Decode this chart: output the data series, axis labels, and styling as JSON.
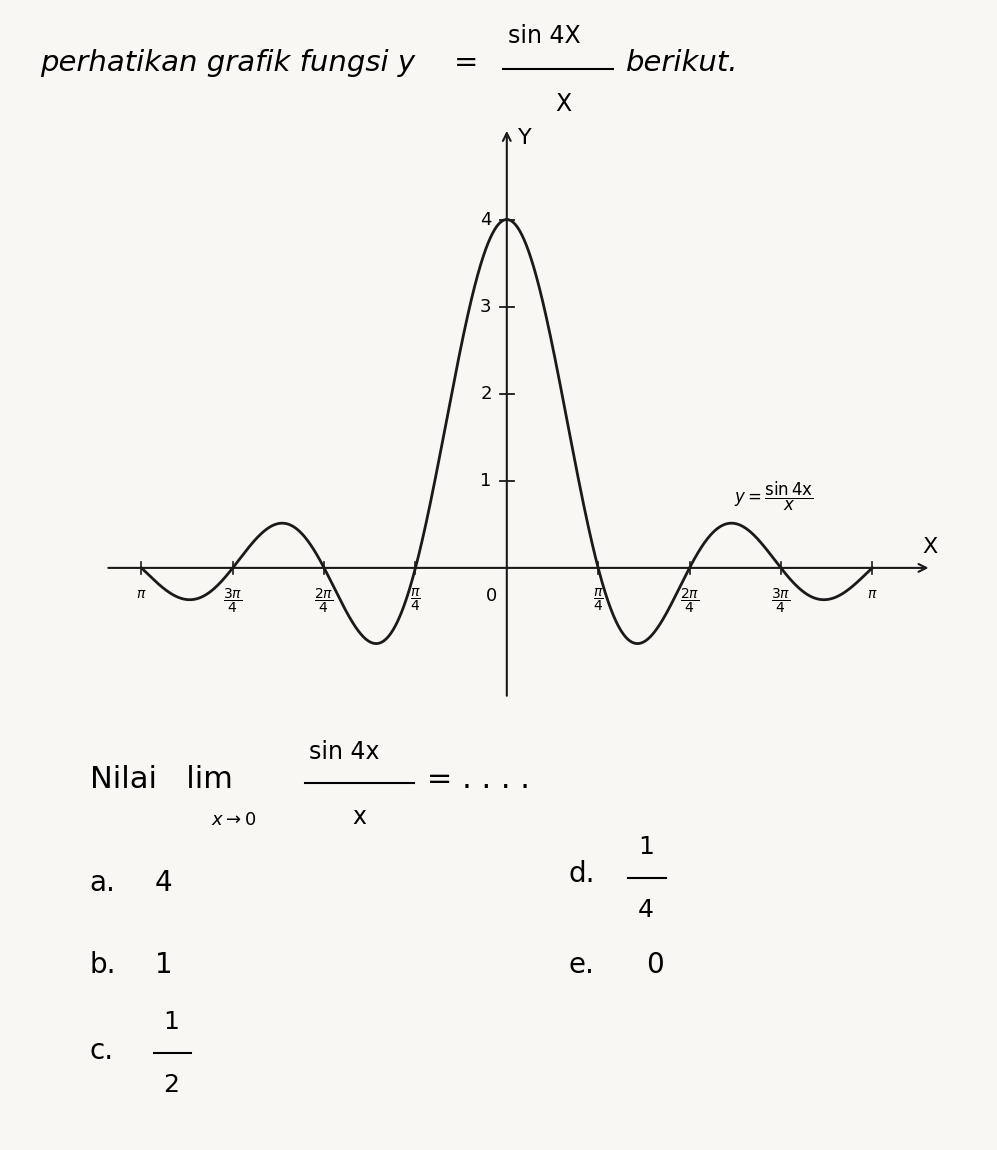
{
  "background_color": "#f8f7f4",
  "curve_color": "#1a1a1a",
  "axis_color": "#1a1a1a",
  "pi": 3.14159265358979,
  "xlim": [
    -3.5,
    3.7
  ],
  "ylim": [
    -1.6,
    5.2
  ],
  "y_ticks": [
    1,
    2,
    3,
    4
  ],
  "curve_linewidth": 2.0
}
